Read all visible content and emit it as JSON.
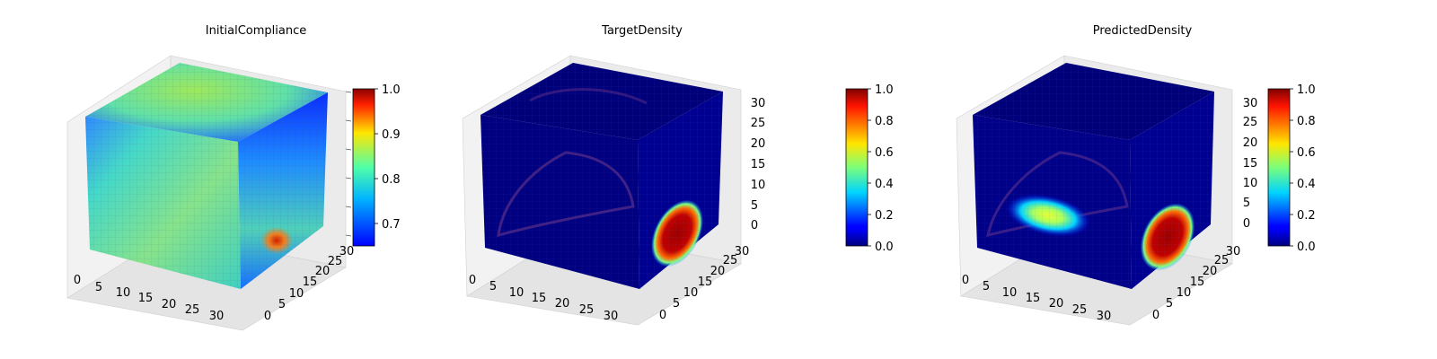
{
  "chart_data": [
    {
      "type": "3d-voxel",
      "title": "InitialCompliance",
      "x_ticks": [
        "0",
        "5",
        "10",
        "15",
        "20",
        "25",
        "30"
      ],
      "y_ticks": [
        "0",
        "5",
        "10",
        "15",
        "20",
        "25",
        "30"
      ],
      "z_ticks": [],
      "colorbar": {
        "cmap": "jet",
        "min": 0.65,
        "max": 1.0,
        "ticks": [
          "0.7",
          "0.8",
          "0.9",
          "1.0"
        ],
        "tick_values": [
          0.7,
          0.8,
          0.9,
          1.0
        ]
      }
    },
    {
      "type": "3d-voxel",
      "title": "TargetDensity",
      "x_ticks": [
        "0",
        "5",
        "10",
        "15",
        "20",
        "25",
        "30"
      ],
      "y_ticks": [
        "0",
        "5",
        "10",
        "15",
        "20",
        "25",
        "30"
      ],
      "z_ticks": [
        "0",
        "5",
        "10",
        "15",
        "20",
        "25",
        "30"
      ],
      "colorbar": {
        "cmap": "jet",
        "min": 0.0,
        "max": 1.0,
        "ticks": [
          "0.0",
          "0.2",
          "0.4",
          "0.6",
          "0.8",
          "1.0"
        ],
        "tick_values": [
          0.0,
          0.2,
          0.4,
          0.6,
          0.8,
          1.0
        ]
      }
    },
    {
      "type": "3d-voxel",
      "title": "PredictedDensity",
      "x_ticks": [
        "0",
        "5",
        "10",
        "15",
        "20",
        "25",
        "30"
      ],
      "y_ticks": [
        "0",
        "5",
        "10",
        "15",
        "20",
        "25",
        "30"
      ],
      "z_ticks": [
        "0",
        "5",
        "10",
        "15",
        "20",
        "25",
        "30"
      ],
      "colorbar": {
        "cmap": "jet",
        "min": 0.0,
        "max": 1.0,
        "ticks": [
          "0.0",
          "0.2",
          "0.4",
          "0.6",
          "0.8",
          "1.0"
        ],
        "tick_values": [
          0.0,
          0.2,
          0.4,
          0.6,
          0.8,
          1.0
        ]
      }
    }
  ]
}
